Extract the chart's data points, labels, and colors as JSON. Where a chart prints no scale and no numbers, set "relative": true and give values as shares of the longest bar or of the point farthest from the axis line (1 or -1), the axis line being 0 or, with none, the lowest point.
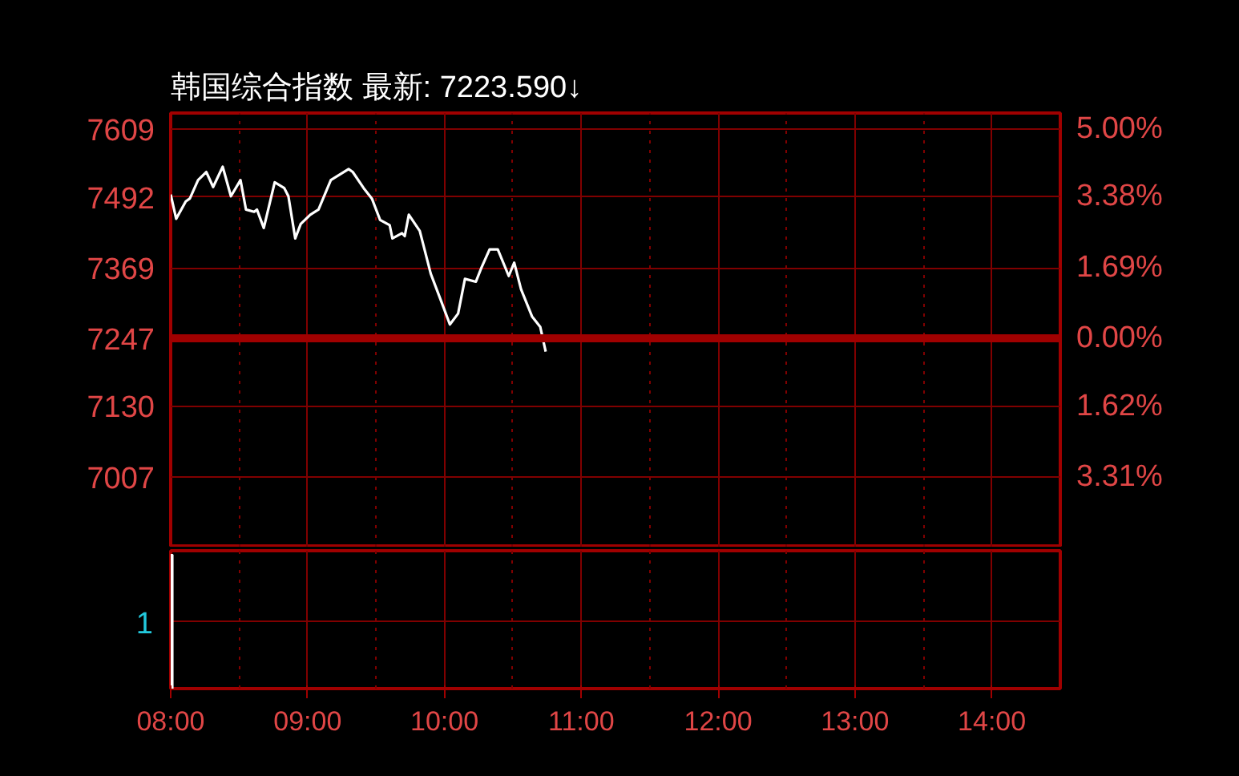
{
  "chart_data": [
    {
      "type": "line",
      "title": "韩国综合指数 最新: 7223.590↓",
      "x": [
        8.0,
        8.04,
        8.11,
        8.14,
        8.2,
        8.26,
        8.31,
        8.38,
        8.44,
        8.51,
        8.55,
        8.61,
        8.63,
        8.68,
        8.76,
        8.83,
        8.86,
        8.91,
        8.95,
        9.02,
        9.08,
        9.17,
        9.3,
        9.33,
        9.41,
        9.47,
        9.53,
        9.6,
        9.62,
        9.69,
        9.71,
        9.74,
        9.82,
        9.9,
        9.98,
        10.04,
        10.1,
        10.15,
        10.23,
        10.27,
        10.33,
        10.39,
        10.47,
        10.51,
        10.56,
        10.64,
        10.7,
        10.74
      ],
      "series": [
        {
          "color": "#ffffff",
          "values": [
            7496,
            7454,
            7484,
            7489,
            7521,
            7535,
            7509,
            7544,
            7493,
            7521,
            7470,
            7466,
            7470,
            7438,
            7517,
            7507,
            7493,
            7420,
            7445,
            7461,
            7470,
            7521,
            7540,
            7535,
            7507,
            7489,
            7452,
            7443,
            7420,
            7429,
            7424,
            7461,
            7433,
            7359,
            7309,
            7271,
            7290,
            7350,
            7345,
            7369,
            7401,
            7401,
            7355,
            7378,
            7332,
            7285,
            7267,
            7224
          ]
        }
      ],
      "xlim": [
        8,
        14.5
      ],
      "xticks": [
        {
          "value": 8.5,
          "label": null
        },
        9,
        {
          "value": 9.5,
          "label": null
        },
        10,
        {
          "value": 10.5,
          "label": null
        },
        11,
        {
          "value": 11.5,
          "label": null
        },
        12,
        {
          "value": 12.5,
          "label": null
        },
        13,
        {
          "value": 13.5,
          "label": null
        },
        14
      ],
      "ylim": [
        6885,
        7637
      ],
      "yticks": [
        7609,
        7492,
        7369,
        7247,
        7130,
        7007
      ],
      "y2lim": [
        -5.0,
        5.38
      ],
      "y2ticks": [
        {
          "value": 5.0,
          "label": "5.00%"
        },
        {
          "value": 3.38,
          "label": "3.38%"
        },
        {
          "value": 1.69,
          "label": "1.69%"
        },
        {
          "value": 0,
          "label": "0.00%"
        },
        {
          "value": -1.62,
          "label": "1.62%"
        },
        {
          "value": -3.31,
          "label": "3.31%"
        }
      ],
      "ref_lines": [
        {
          "axis": "y",
          "value": 7247,
          "color": "#a00000"
        }
      ],
      "grid": true,
      "tick_labels": "y",
      "line_style": "solid"
    },
    {
      "type": "bar",
      "x": [
        8
      ],
      "values": [
        1
      ],
      "relative": true,
      "color": "#ffffff",
      "annotations": [
        "1"
      ],
      "xlim": [
        8,
        14.5
      ],
      "xticks": [
        {
          "value": 8,
          "label": "08:00"
        },
        {
          "value": 8.5,
          "label": null
        },
        {
          "value": 9,
          "label": "09:00"
        },
        {
          "value": 9.5,
          "label": null
        },
        {
          "value": 10,
          "label": "10:00"
        },
        {
          "value": 10.5,
          "label": null
        },
        {
          "value": 11,
          "label": "11:00"
        },
        {
          "value": 11.5,
          "label": null
        },
        {
          "value": 12,
          "label": "12:00"
        },
        {
          "value": 12.5,
          "label": null
        },
        {
          "value": 13,
          "label": "13:00"
        },
        {
          "value": 13.5,
          "label": null
        },
        {
          "value": 14,
          "label": "14:00"
        }
      ],
      "grid": true,
      "tick_labels": "x"
    }
  ]
}
